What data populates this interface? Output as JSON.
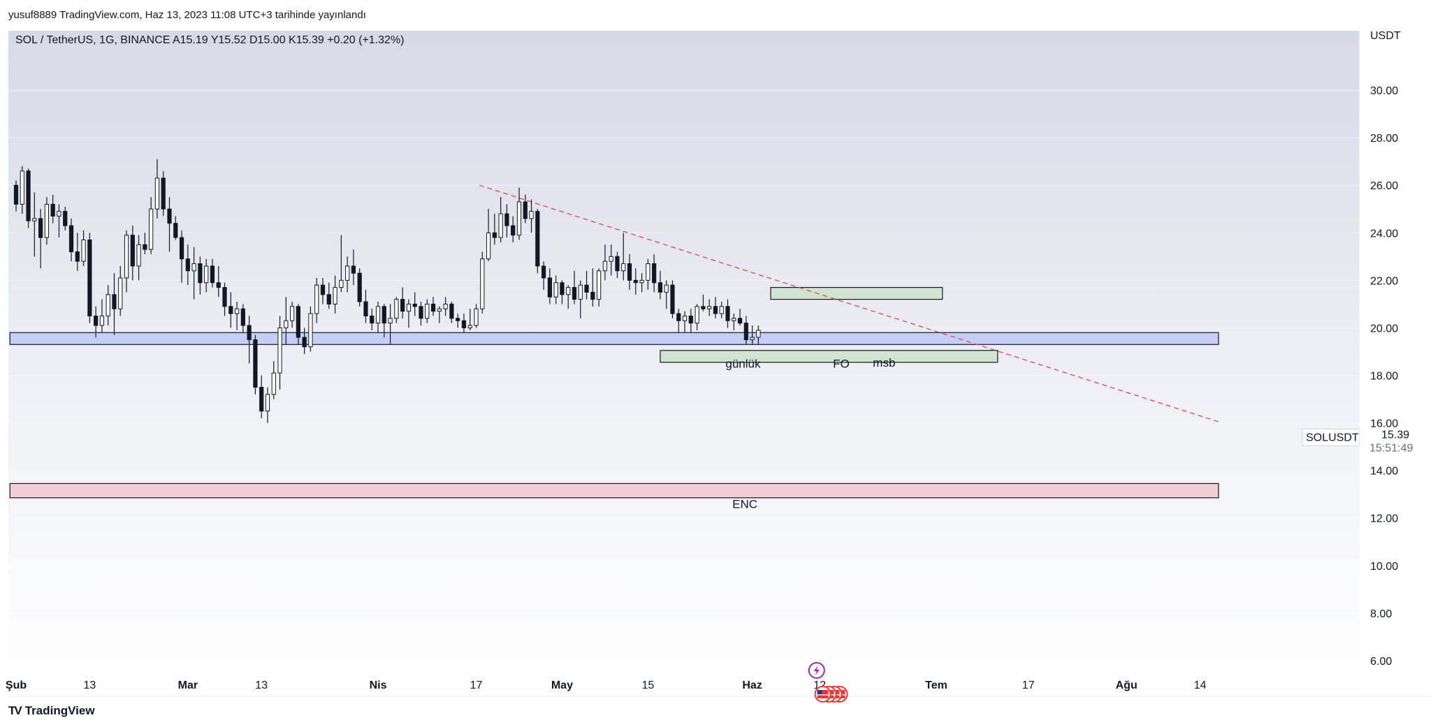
{
  "header": {
    "published_line": "yusuf8889 TradingView.com, Haz 13, 2023 11:08 UTC+3 tarihinde yayınlandı"
  },
  "footer": {
    "brand": "TradingView",
    "mark": "TV"
  },
  "price_tag": {
    "symbol": "SOLUSDT",
    "price": "15.39",
    "countdown": "15:51:49",
    "value": 15.39
  },
  "chart_data": {
    "type": "candlestick",
    "symbol_legend": "SOL / TetherUS, 1G, BINANCE  A15.19  Y15.52  D15.00  K15.39  +0.20 (+1.32%)",
    "currency": "USDT",
    "ylim": [
      4.5,
      32.5
    ],
    "y_ticks": [
      "30.00",
      "28.00",
      "26.00",
      "24.00",
      "22.00",
      "20.00",
      "18.00",
      "16.00",
      "14.00",
      "12.00",
      "10.00",
      "8.00",
      "6.00"
    ],
    "x_labels": [
      {
        "label": "Şub",
        "day": 0,
        "bold": true
      },
      {
        "label": "13",
        "day": 12,
        "bold": false
      },
      {
        "label": "Mar",
        "day": 28,
        "bold": true
      },
      {
        "label": "13",
        "day": 40,
        "bold": false
      },
      {
        "label": "Nis",
        "day": 59,
        "bold": true
      },
      {
        "label": "17",
        "day": 75,
        "bold": false
      },
      {
        "label": "May",
        "day": 89,
        "bold": true
      },
      {
        "label": "15",
        "day": 103,
        "bold": false
      },
      {
        "label": "Haz",
        "day": 120,
        "bold": true
      },
      {
        "label": "12",
        "day": 131,
        "bold": false
      },
      {
        "label": "Tem",
        "day": 150,
        "bold": true
      },
      {
        "label": "17",
        "day": 165,
        "bold": false
      },
      {
        "label": "Ağu",
        "day": 181,
        "bold": true
      },
      {
        "label": "14",
        "day": 193,
        "bold": false
      }
    ],
    "zones": [
      {
        "name": "blue-support",
        "top": 19.8,
        "bottom": 19.3,
        "fill": "#c5cff5",
        "stroke": "#131722",
        "from_day": -1,
        "to_day": 196
      },
      {
        "name": "red-demand",
        "top": 13.45,
        "bottom": 12.85,
        "fill": "#f3cfd3",
        "stroke": "#131722",
        "from_day": -1,
        "to_day": 196
      },
      {
        "name": "green-upper",
        "top": 21.7,
        "bottom": 21.2,
        "fill": "#cfe3cf",
        "stroke": "#131722",
        "from_day": 123,
        "to_day": 151
      },
      {
        "name": "green-lower",
        "top": 19.05,
        "bottom": 18.55,
        "fill": "#cfe3cf",
        "stroke": "#131722",
        "from_day": 105,
        "to_day": 160
      }
    ],
    "annotations": [
      {
        "text": "günlük",
        "day": 118.5,
        "price": 18.5
      },
      {
        "text": "FO",
        "day": 134.5,
        "price": 18.5
      },
      {
        "text": "msb",
        "day": 141.5,
        "price": 18.55
      },
      {
        "text": "ENC",
        "day": 118.8,
        "price": 12.6
      }
    ],
    "trendline": {
      "from": {
        "day": 75.5,
        "price": 26.0
      },
      "to": {
        "day": 196,
        "price": 16.05
      },
      "color": "#e04f5f"
    },
    "events": {
      "lightning_day": 130.5,
      "lightning_price": 6.0,
      "flags_day": 131.5,
      "flags_price": 5.0
    },
    "candles": [
      [
        26.0,
        26.2,
        24.9,
        25.2
      ],
      [
        25.2,
        26.8,
        24.8,
        26.6
      ],
      [
        26.6,
        26.7,
        24.2,
        24.5
      ],
      [
        24.5,
        25.7,
        23.0,
        24.6
      ],
      [
        24.6,
        25.0,
        22.5,
        23.8
      ],
      [
        23.8,
        25.5,
        23.5,
        25.2
      ],
      [
        25.2,
        25.6,
        24.4,
        24.7
      ],
      [
        24.7,
        25.2,
        23.8,
        24.9
      ],
      [
        24.9,
        25.1,
        24.1,
        24.3
      ],
      [
        24.3,
        24.6,
        22.8,
        23.2
      ],
      [
        23.2,
        24.0,
        22.4,
        22.8
      ],
      [
        22.8,
        24.1,
        22.6,
        23.7
      ],
      [
        23.7,
        24.0,
        20.2,
        20.5
      ],
      [
        20.5,
        20.9,
        19.6,
        20.1
      ],
      [
        20.1,
        21.2,
        19.8,
        20.5
      ],
      [
        20.5,
        21.8,
        20.1,
        21.4
      ],
      [
        21.4,
        22.3,
        19.7,
        20.8
      ],
      [
        20.8,
        22.6,
        20.5,
        22.1
      ],
      [
        22.1,
        24.1,
        21.5,
        23.9
      ],
      [
        23.9,
        24.3,
        22.0,
        22.6
      ],
      [
        22.6,
        23.9,
        22.0,
        23.5
      ],
      [
        23.5,
        24.0,
        23.1,
        23.3
      ],
      [
        23.3,
        25.5,
        23.1,
        25.0
      ],
      [
        25.0,
        27.1,
        24.6,
        26.3
      ],
      [
        26.3,
        26.6,
        24.7,
        25.0
      ],
      [
        25.0,
        25.5,
        23.2,
        24.4
      ],
      [
        24.4,
        24.7,
        23.7,
        23.8
      ],
      [
        23.8,
        24.1,
        21.9,
        22.9
      ],
      [
        22.9,
        23.5,
        21.8,
        22.4
      ],
      [
        22.4,
        23.4,
        21.2,
        22.7
      ],
      [
        22.7,
        23.0,
        21.4,
        21.9
      ],
      [
        21.9,
        22.9,
        21.5,
        22.6
      ],
      [
        22.6,
        22.9,
        21.7,
        21.9
      ],
      [
        21.9,
        22.6,
        21.3,
        21.7
      ],
      [
        21.7,
        21.9,
        20.5,
        20.9
      ],
      [
        20.9,
        21.5,
        20.0,
        20.6
      ],
      [
        20.6,
        21.1,
        19.9,
        20.8
      ],
      [
        20.8,
        21.0,
        19.8,
        20.1
      ],
      [
        20.1,
        20.5,
        18.5,
        19.5
      ],
      [
        19.5,
        19.7,
        17.2,
        17.5
      ],
      [
        17.5,
        18.0,
        16.2,
        16.5
      ],
      [
        16.5,
        17.5,
        16.0,
        17.2
      ],
      [
        17.2,
        18.6,
        17.0,
        18.1
      ],
      [
        18.1,
        20.5,
        17.4,
        20.0
      ],
      [
        20.0,
        21.3,
        19.3,
        20.3
      ],
      [
        20.3,
        21.1,
        20.0,
        20.9
      ],
      [
        20.9,
        21.0,
        19.3,
        19.6
      ],
      [
        19.6,
        20.0,
        18.9,
        19.2
      ],
      [
        19.2,
        20.9,
        19.0,
        20.6
      ],
      [
        20.6,
        22.1,
        20.2,
        21.8
      ],
      [
        21.8,
        22.1,
        21.0,
        21.4
      ],
      [
        21.4,
        21.9,
        20.8,
        21.0
      ],
      [
        21.0,
        22.2,
        20.6,
        21.7
      ],
      [
        21.7,
        23.9,
        21.5,
        22.0
      ],
      [
        22.0,
        23.0,
        21.5,
        22.6
      ],
      [
        22.6,
        23.3,
        21.8,
        22.3
      ],
      [
        22.3,
        22.5,
        20.9,
        21.1
      ],
      [
        21.1,
        21.6,
        20.2,
        20.5
      ],
      [
        20.5,
        20.8,
        19.9,
        20.2
      ],
      [
        20.2,
        21.1,
        19.8,
        20.9
      ],
      [
        20.9,
        21.0,
        19.6,
        20.2
      ],
      [
        20.2,
        21.0,
        19.3,
        20.4
      ],
      [
        20.4,
        21.3,
        20.2,
        21.2
      ],
      [
        21.2,
        21.7,
        20.4,
        20.7
      ],
      [
        20.7,
        21.2,
        20.0,
        21.0
      ],
      [
        21.0,
        21.5,
        20.5,
        20.9
      ],
      [
        20.9,
        21.1,
        20.1,
        20.4
      ],
      [
        20.4,
        21.2,
        20.2,
        21.0
      ],
      [
        21.0,
        21.3,
        20.5,
        20.7
      ],
      [
        20.7,
        20.9,
        20.2,
        20.8
      ],
      [
        20.8,
        21.3,
        20.5,
        21.0
      ],
      [
        21.0,
        21.1,
        20.2,
        20.4
      ],
      [
        20.4,
        20.6,
        20.0,
        20.3
      ],
      [
        20.3,
        20.6,
        19.8,
        20.0
      ],
      [
        20.0,
        20.8,
        19.9,
        20.1
      ],
      [
        20.1,
        21.0,
        20.0,
        20.8
      ],
      [
        20.8,
        23.2,
        20.6,
        22.9
      ],
      [
        22.9,
        25.0,
        22.8,
        24.0
      ],
      [
        24.0,
        24.8,
        23.5,
        23.8
      ],
      [
        23.8,
        25.5,
        23.6,
        24.8
      ],
      [
        24.8,
        25.2,
        23.8,
        24.3
      ],
      [
        24.3,
        24.7,
        23.6,
        23.9
      ],
      [
        23.9,
        25.9,
        23.7,
        25.3
      ],
      [
        25.3,
        25.6,
        24.4,
        24.6
      ],
      [
        24.6,
        25.4,
        24.0,
        24.9
      ],
      [
        24.9,
        25.0,
        22.3,
        22.6
      ],
      [
        22.6,
        22.8,
        21.6,
        22.1
      ],
      [
        22.1,
        22.5,
        21.0,
        21.3
      ],
      [
        21.3,
        22.2,
        21.0,
        21.9
      ],
      [
        21.9,
        22.0,
        21.0,
        21.4
      ],
      [
        21.4,
        21.8,
        20.8,
        21.7
      ],
      [
        21.7,
        22.4,
        21.0,
        21.2
      ],
      [
        21.2,
        22.0,
        20.4,
        21.8
      ],
      [
        21.8,
        22.4,
        21.2,
        21.5
      ],
      [
        21.5,
        22.5,
        20.9,
        21.2
      ],
      [
        21.2,
        22.5,
        20.9,
        22.4
      ],
      [
        22.4,
        23.5,
        22.0,
        22.8
      ],
      [
        22.8,
        23.5,
        22.2,
        23.0
      ],
      [
        23.0,
        23.2,
        22.1,
        22.4
      ],
      [
        22.4,
        24.0,
        22.0,
        22.7
      ],
      [
        22.7,
        23.1,
        21.6,
        22.0
      ],
      [
        22.0,
        22.5,
        21.4,
        21.9
      ],
      [
        21.9,
        22.3,
        21.5,
        22.0
      ],
      [
        22.0,
        22.9,
        21.6,
        22.7
      ],
      [
        22.7,
        23.1,
        21.5,
        21.9
      ],
      [
        21.9,
        22.4,
        21.2,
        21.5
      ],
      [
        21.5,
        22.0,
        20.8,
        21.8
      ],
      [
        21.8,
        22.0,
        20.4,
        20.6
      ],
      [
        20.6,
        20.8,
        19.8,
        20.3
      ],
      [
        20.3,
        20.7,
        19.8,
        20.5
      ],
      [
        20.5,
        20.8,
        19.8,
        20.2
      ],
      [
        20.2,
        21.0,
        19.9,
        20.9
      ],
      [
        20.9,
        21.4,
        20.7,
        20.8
      ],
      [
        20.8,
        21.2,
        20.5,
        20.9
      ],
      [
        20.9,
        21.3,
        20.4,
        20.6
      ],
      [
        20.6,
        21.1,
        20.4,
        20.9
      ],
      [
        20.9,
        21.2,
        20.0,
        20.3
      ],
      [
        20.3,
        20.6,
        19.9,
        20.4
      ],
      [
        20.4,
        20.8,
        20.1,
        20.2
      ],
      [
        20.2,
        20.5,
        19.3,
        19.5
      ],
      [
        19.5,
        20.1,
        19.3,
        19.6
      ],
      [
        19.6,
        20.1,
        19.3,
        19.9
      ]
    ]
  }
}
